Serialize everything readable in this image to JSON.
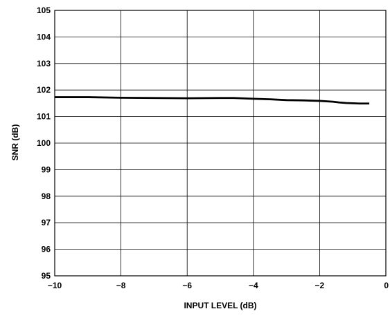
{
  "chart_data": {
    "type": "line",
    "title": "",
    "xlabel": "INPUT LEVEL (dB)",
    "ylabel": "SNR (dB)",
    "xlim": [
      -10,
      0
    ],
    "ylim": [
      95,
      105
    ],
    "grid": true,
    "x_ticks": [
      -10,
      -8,
      -6,
      -4,
      -2,
      0
    ],
    "x_tick_labels": [
      "−10",
      "−8",
      "−6",
      "−4",
      "−2",
      "0"
    ],
    "y_ticks": [
      95,
      96,
      97,
      98,
      99,
      100,
      101,
      102,
      103,
      104,
      105
    ],
    "y_tick_labels": [
      "95",
      "96",
      "97",
      "98",
      "99",
      "100",
      "101",
      "102",
      "103",
      "104",
      "105"
    ],
    "series": [
      {
        "x": [
          -10,
          -9,
          -8,
          -7,
          -6,
          -5,
          -4.6,
          -4,
          -3.5,
          -3,
          -2.5,
          -2,
          -1.6,
          -1.4,
          -1.2,
          -1,
          -0.8,
          -0.5
        ],
        "y": [
          101.73,
          101.73,
          101.71,
          101.7,
          101.69,
          101.7,
          101.7,
          101.67,
          101.65,
          101.62,
          101.61,
          101.59,
          101.56,
          101.53,
          101.51,
          101.5,
          101.49,
          101.49
        ]
      }
    ]
  }
}
